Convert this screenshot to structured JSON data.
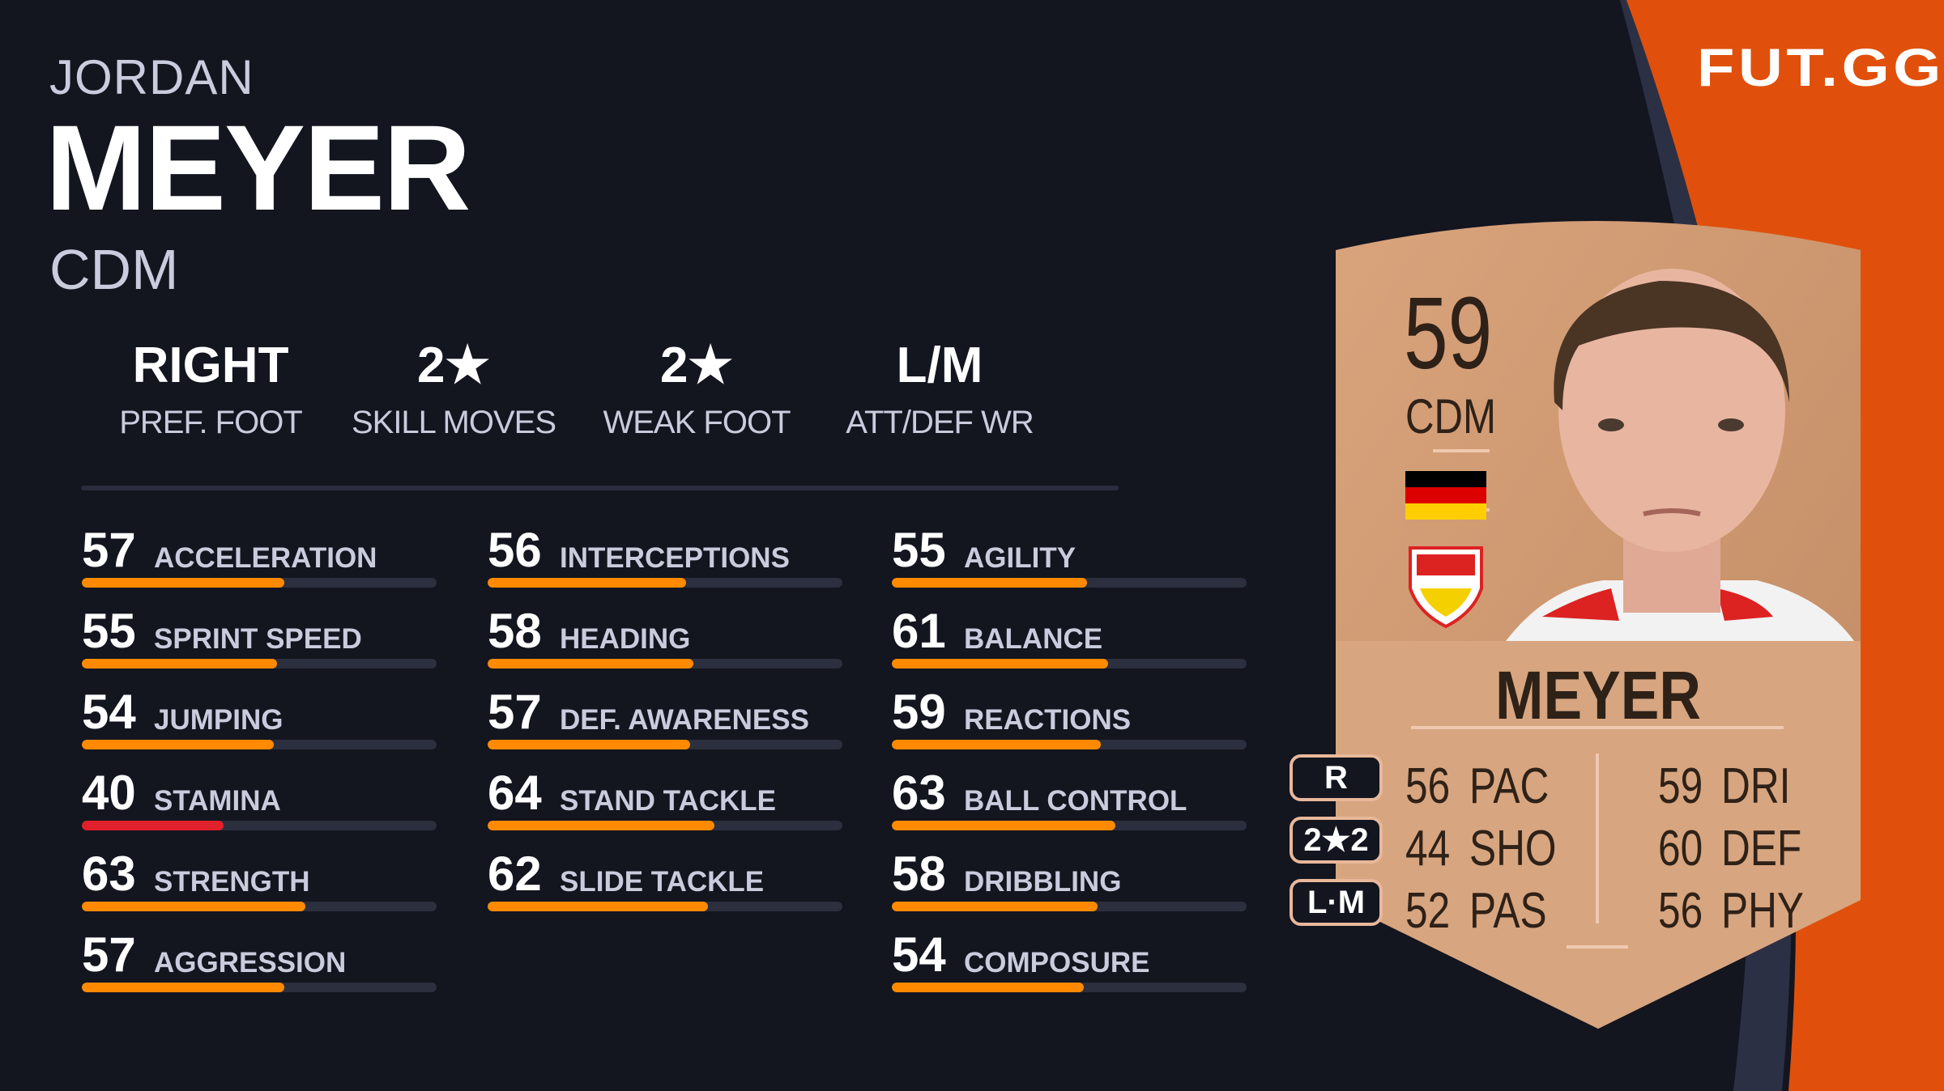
{
  "brand": {
    "logo": "FUT.GG",
    "accent": "#e0500c"
  },
  "player": {
    "first_name": "JORDAN",
    "last_name": "MEYER",
    "position": "CDM"
  },
  "info": [
    {
      "value": "RIGHT",
      "label": "PREF. FOOT"
    },
    {
      "value": "2★",
      "label": "SKILL MOVES"
    },
    {
      "value": "2★",
      "label": "WEAK FOOT"
    },
    {
      "value": "L/M",
      "label": "ATT/DEF WR"
    }
  ],
  "bar_colors": {
    "normal": "#ff8a00",
    "low": "#e0202a",
    "track": "#2c2f3d"
  },
  "stats": [
    [
      {
        "value": 57,
        "label": "ACCELERATION"
      },
      {
        "value": 55,
        "label": "SPRINT SPEED"
      },
      {
        "value": 54,
        "label": "JUMPING"
      },
      {
        "value": 40,
        "label": "STAMINA"
      },
      {
        "value": 63,
        "label": "STRENGTH"
      },
      {
        "value": 57,
        "label": "AGGRESSION"
      }
    ],
    [
      {
        "value": 56,
        "label": "INTERCEPTIONS"
      },
      {
        "value": 58,
        "label": "HEADING"
      },
      {
        "value": 57,
        "label": "DEF. AWARENESS"
      },
      {
        "value": 64,
        "label": "STAND TACKLE"
      },
      {
        "value": 62,
        "label": "SLIDE TACKLE"
      }
    ],
    [
      {
        "value": 55,
        "label": "AGILITY"
      },
      {
        "value": 61,
        "label": "BALANCE"
      },
      {
        "value": 59,
        "label": "REACTIONS"
      },
      {
        "value": 63,
        "label": "BALL CONTROL"
      },
      {
        "value": 58,
        "label": "DRIBBLING"
      },
      {
        "value": 54,
        "label": "COMPOSURE"
      }
    ]
  ],
  "card": {
    "rating": "59",
    "position": "CDM",
    "name": "MEYER",
    "nation": "germany-flag",
    "club": "vfb-stuttgart-crest",
    "side": [
      "R",
      "2★2",
      "L·M"
    ],
    "left": [
      {
        "value": "56",
        "label": "PAC"
      },
      {
        "value": "44",
        "label": "SHO"
      },
      {
        "value": "52",
        "label": "PAS"
      }
    ],
    "right": [
      {
        "value": "59",
        "label": "DRI"
      },
      {
        "value": "60",
        "label": "DEF"
      },
      {
        "value": "56",
        "label": "PHY"
      }
    ]
  }
}
